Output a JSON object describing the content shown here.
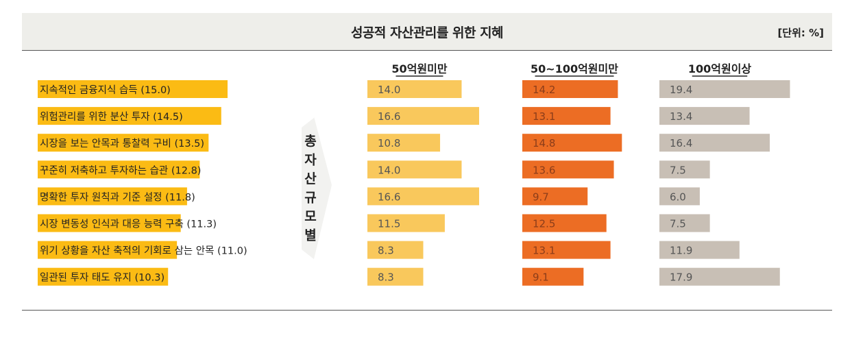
{
  "header": {
    "title": "성공적 자산관리를 위한 지혜",
    "unit": "[단위: %]"
  },
  "side_label": "총자산규모별",
  "colors": {
    "overall": "#fbbb14",
    "under50": "#f9c85c",
    "50to100": "#ec6d24",
    "over100": "#c8bfb5",
    "title_bg": "#eeeeea"
  },
  "chart_data": {
    "type": "bar",
    "title": "성공적 자산관리를 위한 지혜",
    "unit": "%",
    "categories": [
      "지속적인 금융지식 습득",
      "위험관리를 위한 분산 투자",
      "시장을 보는 안목과 통찰력 구비",
      "꾸준히 저축하고 투자하는 습관",
      "명확한 투자 원칙과 기준 설정",
      "시장 변동성 인식과 대응 능력 구축",
      "위기 상황을 자산 축적의 기회로 삼는 안목",
      "일관된 투자 태도 유지"
    ],
    "category_labels": [
      "지속적인 금융지식 습득 (15.0)",
      "위험관리를 위한 분산 투자 (14.5)",
      "시장을 보는 안목과 통찰력 구비 (13.5)",
      "꾸준히 저축하고 투자하는 습관 (12.8)",
      "명확한 투자 원칙과 기준 설정 (11.8)",
      "시장 변동성 인식과 대응 능력 구축 (11.3)",
      "위기 상황을 자산 축적의 기회로 삼는 안목 (11.0)",
      "일관된 투자 태도 유지 (10.3)"
    ],
    "overall": [
      15.0,
      14.5,
      13.5,
      12.8,
      11.8,
      11.3,
      11.0,
      10.3
    ],
    "series": [
      {
        "name": "50억원미만",
        "values": [
          "14.0",
          "16.6",
          "10.8",
          "14.0",
          "16.6",
          "11.5",
          "8.3",
          "8.3"
        ]
      },
      {
        "name": "50~100억원미만",
        "values": [
          "14.2",
          "13.1",
          "14.8",
          "13.6",
          "9.7",
          "12.5",
          "13.1",
          "9.1"
        ]
      },
      {
        "name": "100억원이상",
        "values": [
          "19.4",
          "13.4",
          "16.4",
          "7.5",
          "6.0",
          "7.5",
          "11.9",
          "17.9"
        ]
      }
    ]
  }
}
